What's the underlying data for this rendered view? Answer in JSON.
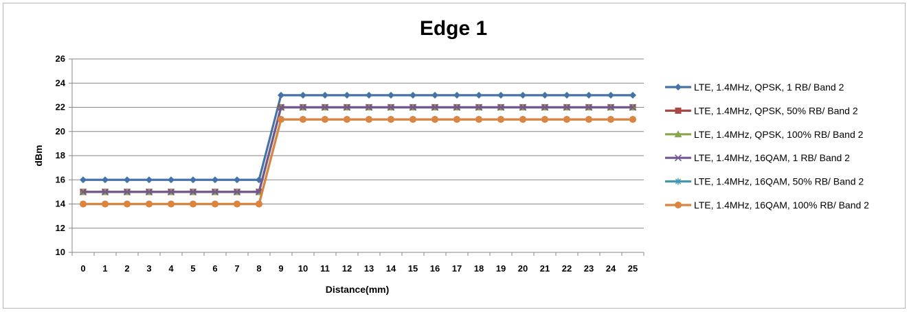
{
  "chart_data": {
    "type": "line",
    "title": "Edge 1",
    "xlabel": "Distance(mm)",
    "ylabel": "dBm",
    "x": [
      0,
      1,
      2,
      3,
      4,
      5,
      6,
      7,
      8,
      9,
      10,
      11,
      12,
      13,
      14,
      15,
      16,
      17,
      18,
      19,
      20,
      21,
      22,
      23,
      24,
      25
    ],
    "ylim": [
      10,
      26
    ],
    "yticks": [
      10,
      12,
      14,
      16,
      18,
      20,
      22,
      24,
      26
    ],
    "grid": "horizontal",
    "legend_position": "right",
    "series": [
      {
        "name": "LTE, 1.4MHz,  QPSK, 1 RB/ Band 2",
        "color": "#4572a7",
        "marker": "diamond",
        "values": [
          16,
          16,
          16,
          16,
          16,
          16,
          16,
          16,
          16,
          23,
          23,
          23,
          23,
          23,
          23,
          23,
          23,
          23,
          23,
          23,
          23,
          23,
          23,
          23,
          23,
          23
        ]
      },
      {
        "name": "LTE, 1.4MHz,  QPSK, 50% RB/ Band 2",
        "color": "#aa4643",
        "marker": "square",
        "values": [
          15,
          15,
          15,
          15,
          15,
          15,
          15,
          15,
          15,
          22,
          22,
          22,
          22,
          22,
          22,
          22,
          22,
          22,
          22,
          22,
          22,
          22,
          22,
          22,
          22,
          22
        ]
      },
      {
        "name": "LTE, 1.4MHz,  QPSK, 100% RB/ Band 2",
        "color": "#89a54e",
        "marker": "triangle",
        "values": [
          15,
          15,
          15,
          15,
          15,
          15,
          15,
          15,
          15,
          22,
          22,
          22,
          22,
          22,
          22,
          22,
          22,
          22,
          22,
          22,
          22,
          22,
          22,
          22,
          22,
          22
        ]
      },
      {
        "name": "LTE, 1.4MHz,  16QAM, 1 RB/ Band 2",
        "color": "#71588f",
        "marker": "x",
        "values": [
          15,
          15,
          15,
          15,
          15,
          15,
          15,
          15,
          15,
          22,
          22,
          22,
          22,
          22,
          22,
          22,
          22,
          22,
          22,
          22,
          22,
          22,
          22,
          22,
          22,
          22
        ]
      },
      {
        "name": "LTE, 1.4MHz,  16QAM, 50% RB/ Band 2",
        "color": "#4198af",
        "marker": "star",
        "values": [
          14,
          14,
          14,
          14,
          14,
          14,
          14,
          14,
          14,
          21,
          21,
          21,
          21,
          21,
          21,
          21,
          21,
          21,
          21,
          21,
          21,
          21,
          21,
          21,
          21,
          21
        ]
      },
      {
        "name": "LTE, 1.4MHz,  16QAM, 100% RB/ Band 2",
        "color": "#db843d",
        "marker": "circle",
        "values": [
          14,
          14,
          14,
          14,
          14,
          14,
          14,
          14,
          14,
          21,
          21,
          21,
          21,
          21,
          21,
          21,
          21,
          21,
          21,
          21,
          21,
          21,
          21,
          21,
          21,
          21
        ]
      }
    ]
  }
}
